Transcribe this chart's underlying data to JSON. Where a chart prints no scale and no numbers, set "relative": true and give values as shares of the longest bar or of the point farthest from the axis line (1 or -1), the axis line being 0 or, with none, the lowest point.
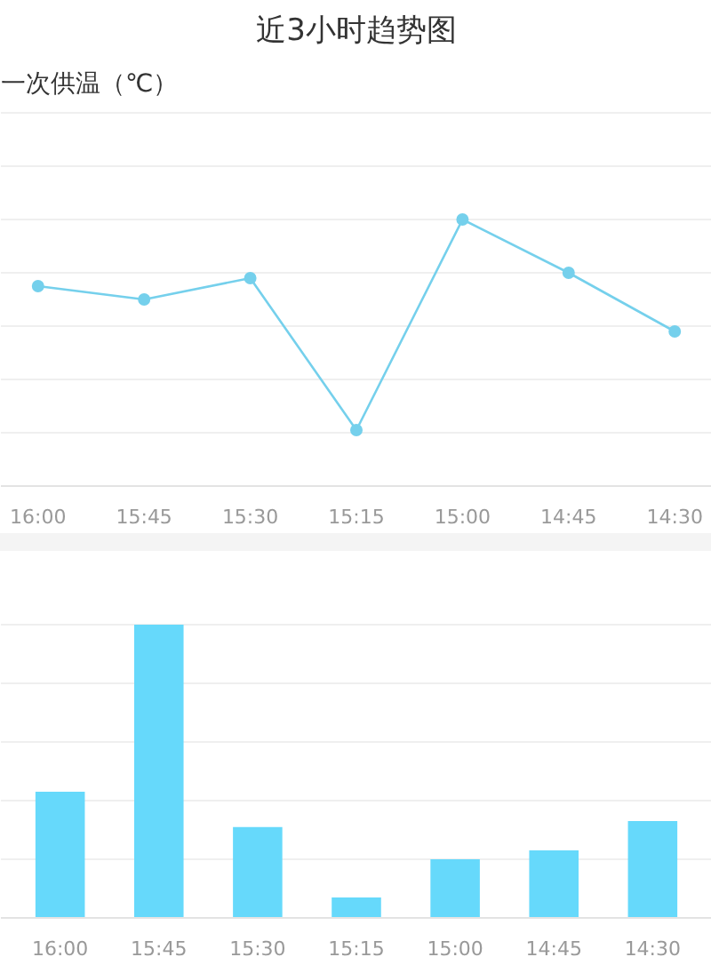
{
  "chart_data": [
    {
      "type": "line",
      "title": "近3小时趋势图",
      "ylabel": "一次供温（℃）",
      "categories": [
        "16:00",
        "15:45",
        "15:30",
        "15:15",
        "15:00",
        "14:45",
        "14:30"
      ],
      "relative": true,
      "series": [
        {
          "color": "#75d0ec",
          "values": [
            0.75,
            0.7,
            0.78,
            0.21,
            1,
            0.8,
            0.58
          ]
        }
      ],
      "marker": "circle",
      "line_style": "solid",
      "grid": "y"
    },
    {
      "type": "bar",
      "categories": [
        "16:00",
        "15:45",
        "15:30",
        "15:15",
        "15:00",
        "14:45",
        "14:30"
      ],
      "relative": true,
      "values": [
        0.43,
        1,
        0.31,
        0.07,
        0.2,
        0.23,
        0.33
      ],
      "color": "#66d9fb",
      "grid": "y"
    }
  ]
}
